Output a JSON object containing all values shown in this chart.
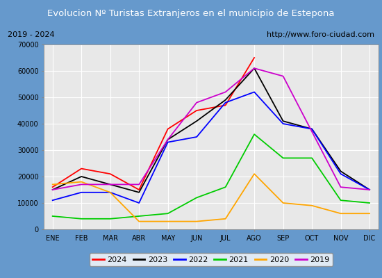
{
  "title": "Evolucion Nº Turistas Extranjeros en el municipio de Estepona",
  "subtitle_left": "2019 - 2024",
  "subtitle_right": "http://www.foro-ciudad.com",
  "months": [
    "ENE",
    "FEB",
    "MAR",
    "ABR",
    "MAY",
    "JUN",
    "JUL",
    "AGO",
    "SEP",
    "OCT",
    "NOV",
    "DIC"
  ],
  "ylim": [
    0,
    70000
  ],
  "yticks": [
    0,
    10000,
    20000,
    30000,
    40000,
    50000,
    60000,
    70000
  ],
  "series": {
    "2024": {
      "color": "#ff0000",
      "data": [
        16000,
        23000,
        21000,
        15000,
        38000,
        45000,
        47000,
        65000,
        null,
        null,
        null,
        null
      ]
    },
    "2023": {
      "color": "#000000",
      "data": [
        15000,
        20000,
        17000,
        14000,
        34000,
        41000,
        49000,
        61000,
        41000,
        38000,
        22000,
        15000
      ]
    },
    "2022": {
      "color": "#0000ff",
      "data": [
        11000,
        14000,
        14000,
        10000,
        33000,
        35000,
        48000,
        52000,
        40000,
        38000,
        21000,
        15000
      ]
    },
    "2021": {
      "color": "#00cc00",
      "data": [
        5000,
        4000,
        4000,
        5000,
        6000,
        12000,
        16000,
        36000,
        27000,
        27000,
        11000,
        10000
      ]
    },
    "2020": {
      "color": "#ffa500",
      "data": [
        17000,
        18000,
        14000,
        3000,
        3000,
        3000,
        4000,
        21000,
        10000,
        9000,
        6000,
        6000
      ]
    },
    "2019": {
      "color": "#cc00cc",
      "data": [
        15000,
        17000,
        17000,
        17000,
        34000,
        48000,
        52000,
        61000,
        58000,
        37000,
        16000,
        15000
      ]
    }
  },
  "legend_order": [
    "2024",
    "2023",
    "2022",
    "2021",
    "2020",
    "2019"
  ],
  "fig_bg_color": "#6699cc",
  "plot_bg_color": "#e8e8e8",
  "grid_color": "#ffffff",
  "title_color": "#ffffff",
  "subtitle_box_color": "#ffffff",
  "subtitle_text_color": "#000000"
}
